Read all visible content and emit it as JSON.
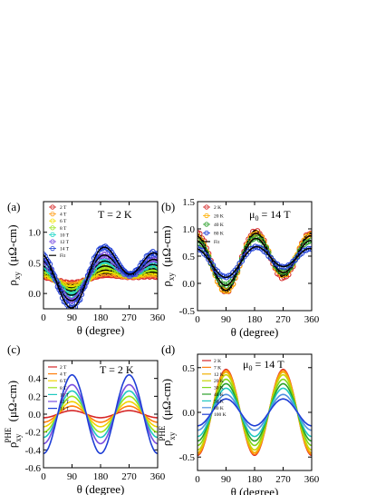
{
  "chart_data": [
    {
      "id": "a",
      "type": "scatter",
      "panel_label": "(a)",
      "annotation": "T = 2 K",
      "xlabel": "θ (degree)",
      "ylabel": "ρ",
      "ylabel_sub": "xy",
      "ylabel_units": "(μΩ-cm)",
      "xlim": [
        0,
        360
      ],
      "ylim": [
        -0.25,
        1.5
      ],
      "xticks": [
        0,
        90,
        180,
        270,
        360
      ],
      "yticks": [
        0.0,
        0.5,
        1.0
      ],
      "ytick_labels": [
        "0.0",
        "0.5",
        "1.0"
      ],
      "legend_position": "top-left",
      "fit_label": "Fit",
      "series": [
        {
          "name": "2 T",
          "color": "#d62728",
          "offset": 0.25,
          "amp_s": 0.03,
          "amp_b": 0.05
        },
        {
          "name": "4 T",
          "color": "#ff9f1c",
          "offset": 0.26,
          "amp_s": 0.05,
          "amp_b": 0.07
        },
        {
          "name": "6 T",
          "color": "#f2e200",
          "offset": 0.27,
          "amp_s": 0.08,
          "amp_b": 0.1
        },
        {
          "name": "8 T",
          "color": "#9be31c",
          "offset": 0.29,
          "amp_s": 0.12,
          "amp_b": 0.13
        },
        {
          "name": "10 T",
          "color": "#1fd6c8",
          "offset": 0.31,
          "amp_s": 0.17,
          "amp_b": 0.17
        },
        {
          "name": "12 T",
          "color": "#7a4fe0",
          "offset": 0.33,
          "amp_s": 0.24,
          "amp_b": 0.21
        },
        {
          "name": "14 T",
          "color": "#1f3fd6",
          "offset": 0.36,
          "amp_s": 0.32,
          "amp_b": 0.28
        }
      ]
    },
    {
      "id": "b",
      "type": "scatter",
      "panel_label": "(b)",
      "annotation": "μ0H = 14 T",
      "xlabel": "θ (degree)",
      "ylabel": "ρ",
      "ylabel_sub": "xy",
      "ylabel_units": "(μΩ-cm)",
      "xlim": [
        0,
        360
      ],
      "ylim": [
        -0.5,
        1.5
      ],
      "xticks": [
        0,
        90,
        180,
        270,
        360
      ],
      "yticks": [
        -0.5,
        0.0,
        0.5,
        1.0,
        1.5
      ],
      "ytick_labels": [
        "-0.5",
        "0.0",
        "0.5",
        "1.0",
        "1.5"
      ],
      "legend_position": "top-left",
      "fit_label": "Fit",
      "series": [
        {
          "name": "2 K",
          "color": "#d62728",
          "offset": 0.46,
          "amp_s": 0.48,
          "amp_b": 0.14
        },
        {
          "name": "20 K",
          "color": "#ffb000",
          "offset": 0.45,
          "amp_s": 0.44,
          "amp_b": 0.14
        },
        {
          "name": "40 K",
          "color": "#2ca02c",
          "offset": 0.44,
          "amp_s": 0.36,
          "amp_b": 0.12
        },
        {
          "name": "80 K",
          "color": "#1f3fd6",
          "offset": 0.43,
          "amp_s": 0.22,
          "amp_b": 0.1
        }
      ]
    },
    {
      "id": "c",
      "type": "line",
      "panel_label": "(c)",
      "annotation": "T = 2 K",
      "xlabel": "θ (degree)",
      "ylabel": "ρ",
      "ylabel_sub": "xy",
      "ylabel_sup": "PHE",
      "ylabel_units": "(μΩ-cm)",
      "xlim": [
        0,
        360
      ],
      "ylim": [
        -0.6,
        0.6
      ],
      "xticks": [
        0,
        90,
        180,
        270,
        360
      ],
      "yticks": [
        -0.6,
        -0.4,
        -0.2,
        0.0,
        0.2,
        0.4
      ],
      "ytick_labels": [
        "-0.6",
        "-0.4",
        "-0.2",
        "0.0",
        "0.2",
        "0.4"
      ],
      "legend_position": "top-left",
      "series": [
        {
          "name": "2 T",
          "color": "#d62728",
          "amp": 0.04
        },
        {
          "name": "4 T",
          "color": "#ff7f0e",
          "amp": 0.09
        },
        {
          "name": "6 T",
          "color": "#f2d200",
          "amp": 0.14
        },
        {
          "name": "8 T",
          "color": "#9be31c",
          "amp": 0.2
        },
        {
          "name": "10 T",
          "color": "#1fc9c0",
          "amp": 0.26
        },
        {
          "name": "12 T",
          "color": "#7a4fe0",
          "amp": 0.33
        },
        {
          "name": "14 T",
          "color": "#1f3fd6",
          "amp": 0.44
        }
      ]
    },
    {
      "id": "d",
      "type": "line",
      "panel_label": "(d)",
      "annotation": "μ0H = 14 T",
      "xlabel": "θ (degree)",
      "ylabel": "ρ",
      "ylabel_sub": "xy",
      "ylabel_sup": "PHE",
      "ylabel_units": "(μΩ-cm)",
      "xlim": [
        0,
        360
      ],
      "ylim": [
        -0.65,
        0.65
      ],
      "xticks": [
        0,
        90,
        180,
        270,
        360
      ],
      "yticks": [
        -0.5,
        0.0,
        0.5
      ],
      "ytick_labels": [
        "-0.5",
        "0.0",
        "0.5"
      ],
      "legend_position": "top-left",
      "series": [
        {
          "name": "2 K",
          "color": "#d62728",
          "amp": 0.48
        },
        {
          "name": "7 K",
          "color": "#ff7f0e",
          "amp": 0.47
        },
        {
          "name": "12 K",
          "color": "#f2b000",
          "amp": 0.45
        },
        {
          "name": "20 K",
          "color": "#c8d400",
          "amp": 0.42
        },
        {
          "name": "30 K",
          "color": "#7fd61c",
          "amp": 0.37
        },
        {
          "name": "40 K",
          "color": "#2ca02c",
          "amp": 0.32
        },
        {
          "name": "50 K",
          "color": "#1fc9c0",
          "amp": 0.27
        },
        {
          "name": "80 K",
          "color": "#4f8fe0",
          "amp": 0.2
        },
        {
          "name": "100 K",
          "color": "#1f3fd6",
          "amp": 0.15
        }
      ]
    }
  ]
}
